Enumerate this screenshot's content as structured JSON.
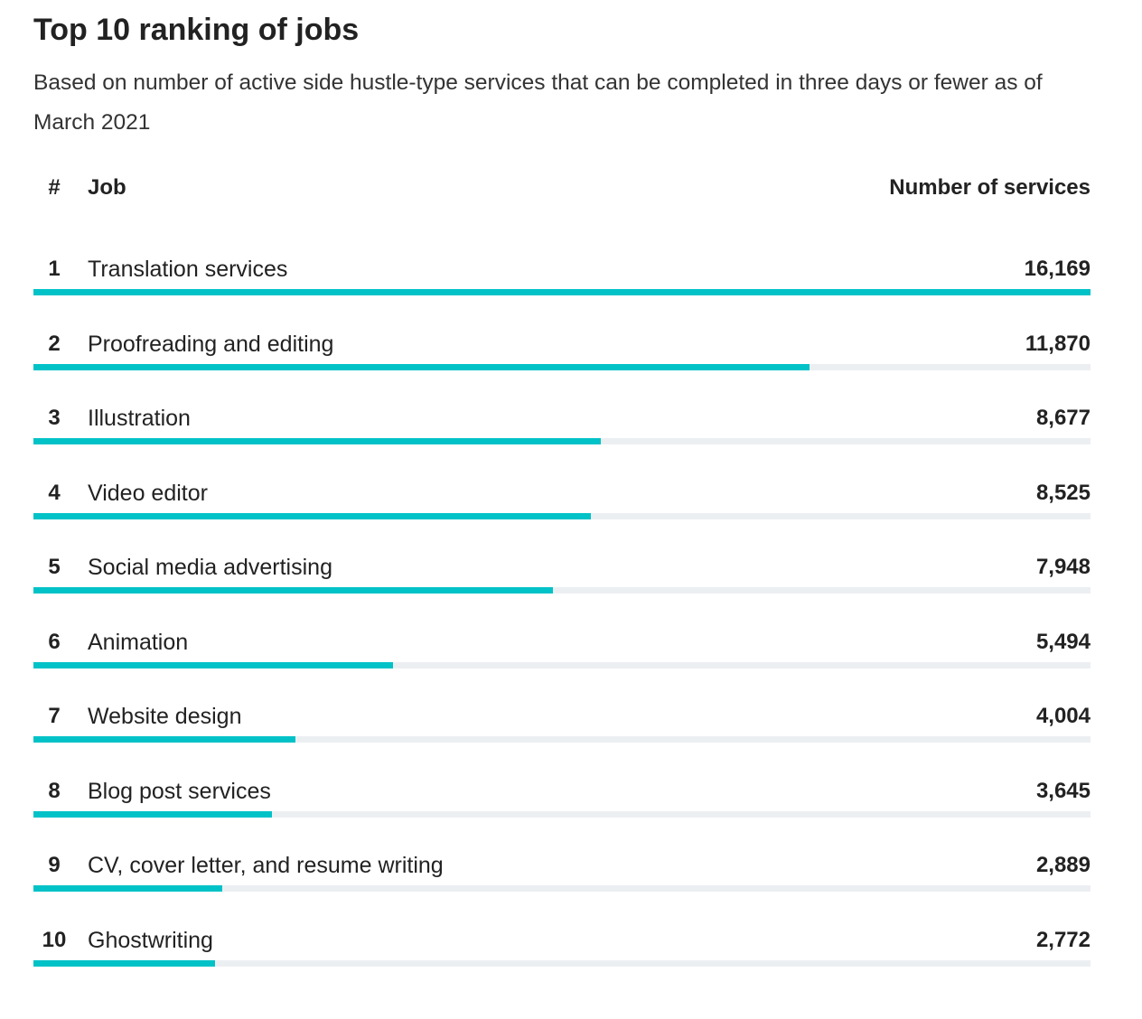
{
  "chart_data": {
    "type": "bar",
    "orientation": "horizontal",
    "title": "Top 10 ranking of jobs",
    "subtitle": "Based on number of active side hustle-type services that can be completed in three days or fewer as of March 2021",
    "columns": {
      "rank": "#",
      "job": "Job",
      "value": "Number of services"
    },
    "rows": [
      {
        "rank": "1",
        "job": "Translation services",
        "value_label": "16,169",
        "value": 16169
      },
      {
        "rank": "2",
        "job": "Proofreading and editing",
        "value_label": "11,870",
        "value": 11870
      },
      {
        "rank": "3",
        "job": "Illustration",
        "value_label": "8,677",
        "value": 8677
      },
      {
        "rank": "4",
        "job": "Video editor",
        "value_label": "8,525",
        "value": 8525
      },
      {
        "rank": "5",
        "job": "Social media advertising",
        "value_label": "7,948",
        "value": 7948
      },
      {
        "rank": "6",
        "job": "Animation",
        "value_label": "5,494",
        "value": 5494
      },
      {
        "rank": "7",
        "job": "Website design",
        "value_label": "4,004",
        "value": 4004
      },
      {
        "rank": "8",
        "job": "Blog post services",
        "value_label": "3,645",
        "value": 3645
      },
      {
        "rank": "9",
        "job": "CV, cover letter, and resume writing",
        "value_label": "2,889",
        "value": 2889
      },
      {
        "rank": "10",
        "job": "Ghostwriting",
        "value_label": "2,772",
        "value": 2772
      }
    ],
    "xlim": [
      0,
      16169
    ],
    "grid": false,
    "legend": "none",
    "colors": {
      "bar": "#00c2c7",
      "track": "#eceff2",
      "text": "#222222"
    }
  }
}
